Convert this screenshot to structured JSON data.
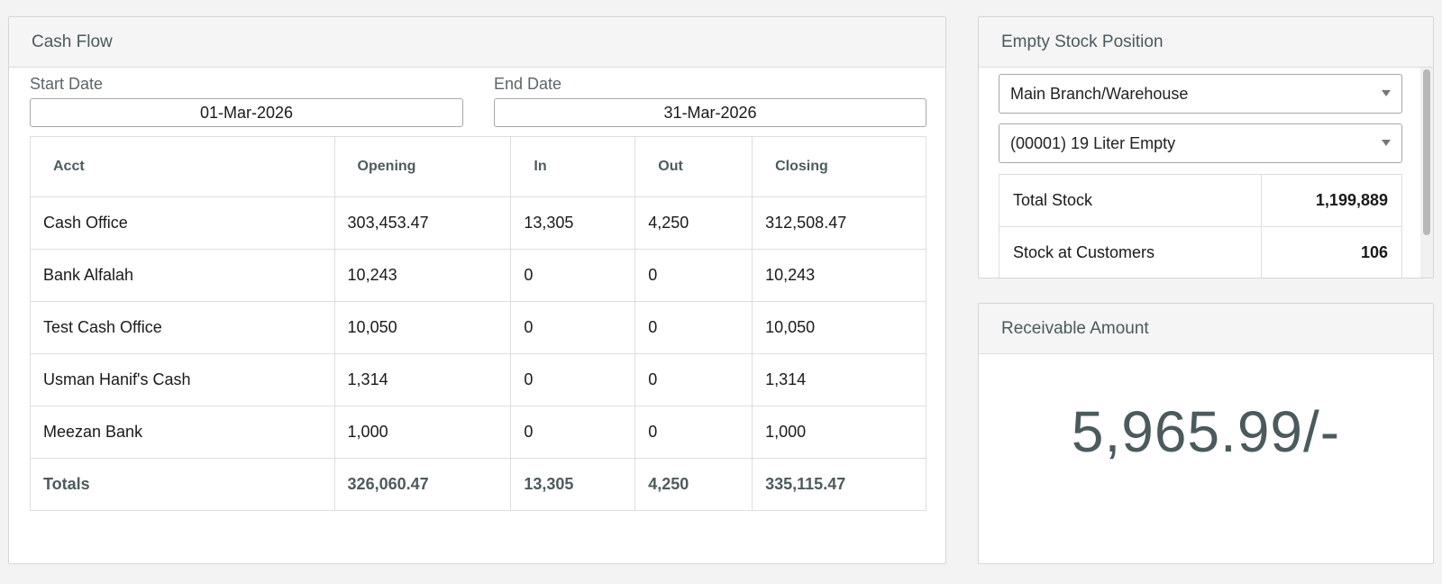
{
  "cash_flow": {
    "title": "Cash Flow",
    "start_date_label": "Start Date",
    "start_date_value": "01-Mar-2026",
    "end_date_label": "End Date",
    "end_date_value": "31-Mar-2026",
    "columns": [
      "Acct",
      "Opening",
      "In",
      "Out",
      "Closing"
    ],
    "rows": [
      [
        "Cash Office",
        "303,453.47",
        "13,305",
        "4,250",
        "312,508.47"
      ],
      [
        "Bank Alfalah",
        "10,243",
        "0",
        "0",
        "10,243"
      ],
      [
        "Test Cash Office",
        "10,050",
        "0",
        "0",
        "10,050"
      ],
      [
        "Usman Hanif's Cash",
        "1,314",
        "0",
        "0",
        "1,314"
      ],
      [
        "Meezan Bank",
        "1,000",
        "0",
        "0",
        "1,000"
      ]
    ],
    "totals": [
      "Totals",
      "326,060.47",
      "13,305",
      "4,250",
      "335,115.47"
    ]
  },
  "empty_stock": {
    "title": "Empty Stock Position",
    "warehouse_selected": "Main Branch/Warehouse",
    "item_selected": "(00001) 19 Liter Empty",
    "rows": [
      [
        "Total Stock",
        "1,199,889"
      ],
      [
        "Stock at Customers",
        "106"
      ]
    ]
  },
  "receivable": {
    "title": "Receivable Amount",
    "amount": "5,965.99/-"
  },
  "colors": {
    "header_text": "#4a5a5c",
    "panel_bg": "#ffffff",
    "page_bg": "#f3f3f3"
  }
}
